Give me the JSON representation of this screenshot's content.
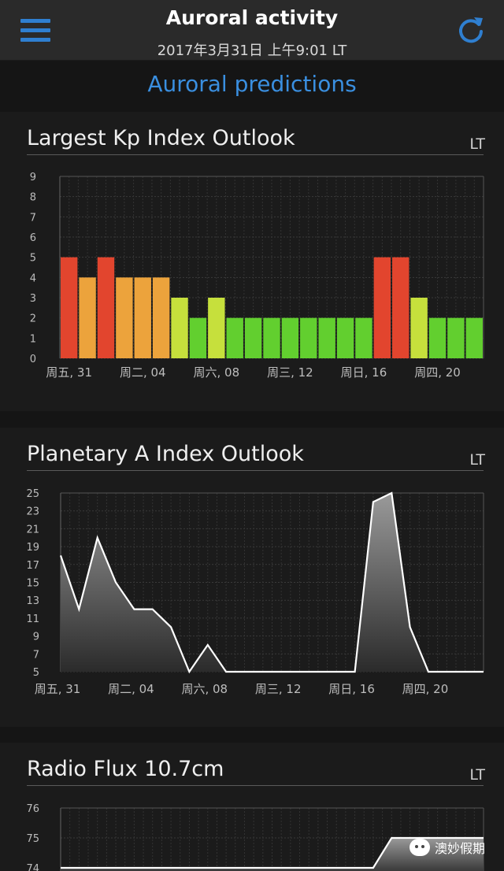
{
  "header": {
    "title": "Auroral activity",
    "subtitle": "2017年3月31日 上午9:01 LT",
    "menu_icon": "hamburger-menu-icon",
    "refresh_icon": "refresh-icon",
    "accent_color": "#2f7fd0"
  },
  "section": {
    "heading": "Auroral predictions"
  },
  "kp_card": {
    "title": "Largest Kp Index Outlook",
    "tz": "LT"
  },
  "a_card": {
    "title": "Planetary A Index Outlook",
    "tz": "LT"
  },
  "radio_card": {
    "title": "Radio Flux 10.7cm",
    "tz": "LT"
  },
  "watermark": {
    "text": "澳妙假期"
  },
  "chart_data": [
    {
      "type": "bar",
      "title": "Largest Kp Index Outlook",
      "ylim": [
        0,
        9
      ],
      "y_ticks": [
        "0",
        "1",
        "2",
        "3",
        "4",
        "5",
        "6",
        "7",
        "8",
        "9"
      ],
      "x_tick_labels": [
        "周五, 31",
        "周二, 04",
        "周六, 08",
        "周三, 12",
        "周日, 16",
        "周四, 20"
      ],
      "values": [
        5,
        4,
        5,
        4,
        4,
        4,
        3,
        2,
        3,
        2,
        2,
        2,
        2,
        2,
        2,
        2,
        2,
        5,
        5,
        3,
        2,
        2,
        2
      ],
      "colors": {
        "5": "#e2452e",
        "4": "#eca33c",
        "3": "#c6e03c",
        "2": "#62cf2f"
      },
      "grid": true
    },
    {
      "type": "area",
      "title": "Planetary A Index Outlook",
      "ylim": [
        5,
        25
      ],
      "y_ticks": [
        "5",
        "7",
        "9",
        "11",
        "13",
        "15",
        "17",
        "19",
        "21",
        "23",
        "25"
      ],
      "x_tick_labels": [
        "周五, 31",
        "周二, 04",
        "周六, 08",
        "周三, 12",
        "周日, 16",
        "周四, 20"
      ],
      "values": [
        18,
        12,
        20,
        15,
        12,
        12,
        10,
        5,
        8,
        5,
        5,
        5,
        5,
        5,
        5,
        5,
        5,
        24,
        25,
        10,
        5,
        5,
        5
      ],
      "grid": true
    },
    {
      "type": "area",
      "title": "Radio Flux 10.7cm",
      "y_ticks": [
        "74",
        "75",
        "76"
      ],
      "values": [
        74,
        74,
        74,
        74,
        74,
        74,
        74,
        74,
        74,
        74,
        74,
        74,
        74,
        74,
        74,
        74,
        74,
        74,
        75,
        75,
        75,
        75,
        75
      ],
      "grid": true
    }
  ]
}
